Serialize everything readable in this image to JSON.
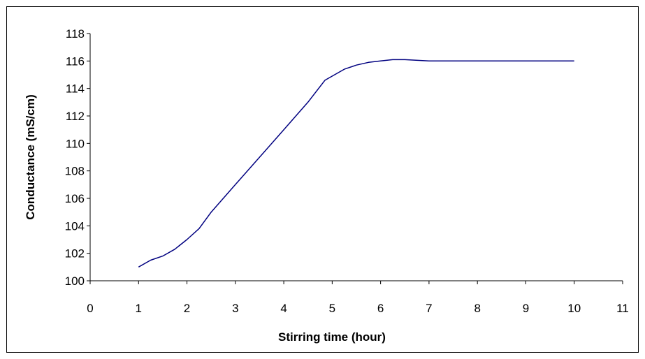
{
  "chart_data": {
    "type": "line",
    "title": "",
    "xlabel": "Stirring time (hour)",
    "ylabel": "Conductance (mS/cm)",
    "xlim": [
      0,
      11
    ],
    "ylim": [
      100,
      118
    ],
    "xticks": [
      "0",
      "1",
      "2",
      "3",
      "4",
      "5",
      "6",
      "7",
      "8",
      "9",
      "10",
      "11"
    ],
    "yticks": [
      "100",
      "102",
      "104",
      "106",
      "108",
      "110",
      "112",
      "114",
      "116",
      "118"
    ],
    "grid": false,
    "legend": "none",
    "series": [
      {
        "color": "#000080",
        "x": [
          1,
          1.25,
          1.5,
          1.75,
          2,
          2.25,
          2.5,
          3,
          3.5,
          4,
          4.5,
          4.85,
          5.25,
          5.5,
          5.75,
          6,
          6.25,
          6.5,
          7,
          8,
          9,
          10
        ],
        "y": [
          101.0,
          101.5,
          101.8,
          102.3,
          103.0,
          103.8,
          105.0,
          107.0,
          109.0,
          111.0,
          113.0,
          114.6,
          115.4,
          115.7,
          115.9,
          116.0,
          116.1,
          116.1,
          116.0,
          116.0,
          116.0,
          116.0
        ]
      }
    ]
  }
}
